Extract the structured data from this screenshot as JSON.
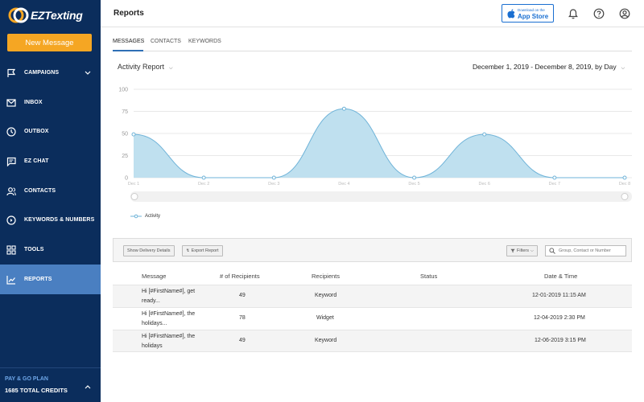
{
  "brand": {
    "logo_text": "EZTexting"
  },
  "sidebar": {
    "new_message": "New Message",
    "items": [
      {
        "label": "CAMPAIGNS",
        "icon": "flag-icon",
        "has_chevron": true
      },
      {
        "label": "INBOX",
        "icon": "inbox-icon"
      },
      {
        "label": "OUTBOX",
        "icon": "clock-icon"
      },
      {
        "label": "EZ CHAT",
        "icon": "chat-icon"
      },
      {
        "label": "CONTACTS",
        "icon": "contacts-icon"
      },
      {
        "label": "KEYWORDS & NUMBERS",
        "icon": "keywords-icon"
      },
      {
        "label": "TOOLS",
        "icon": "grid-icon"
      },
      {
        "label": "REPORTS",
        "icon": "chart-line-icon",
        "active": true
      }
    ],
    "plan": {
      "title": "PAY & GO PLAN",
      "credits": "1685 TOTAL CREDITS"
    }
  },
  "header": {
    "title": "Reports",
    "appstore": {
      "small": "Download on the",
      "big": "App Store"
    },
    "icons": [
      "bell-icon",
      "help-icon",
      "user-icon"
    ]
  },
  "tabs": [
    "MESSAGES",
    "CONTACTS",
    "KEYWORDS"
  ],
  "report": {
    "selector": "Activity Report",
    "date_range": "December 1, 2019 - December 8, 2019, by Day"
  },
  "chart_data": {
    "type": "area",
    "x": [
      "Dec 1",
      "Dec 2",
      "Dec 3",
      "Dec 4",
      "Dec 5",
      "Dec 6",
      "Dec 7",
      "Dec 8"
    ],
    "series": [
      {
        "name": "Activity",
        "values": [
          49,
          0,
          0,
          78,
          0,
          49,
          0,
          0
        ]
      }
    ],
    "yticks": [
      0,
      25,
      50,
      75,
      100
    ],
    "ylim": [
      0,
      100
    ],
    "grid": true,
    "legend": "bottom-left",
    "color": "#6fb3d8",
    "fill": "#bfe0ef"
  },
  "toolbar": {
    "delivery_details": "Show Delivery Details",
    "export_report": "Export Report",
    "filters": "Filters",
    "search_placeholder": "Group, Contact or Number"
  },
  "table": {
    "headers": [
      "Message",
      "# of Recipients",
      "Recipients",
      "Status",
      "Date & Time"
    ],
    "rows": [
      {
        "message_line1": "Hi [#FirstName#], get",
        "message_line2": "ready...",
        "recipients_count": "49",
        "recipients": "Keyword",
        "status": "",
        "datetime": "12-01-2019 11:15 AM"
      },
      {
        "message_line1": "Hi [#FirstName#], the",
        "message_line2": "holidays...",
        "recipients_count": "78",
        "recipients": "Widget",
        "status": "",
        "datetime": "12-04-2019 2:30 PM"
      },
      {
        "message_line1": "Hi [#FirstName#], the",
        "message_line2": "holidays",
        "recipients_count": "49",
        "recipients": "Keyword",
        "status": "",
        "datetime": "12-06-2019 3:15 PM"
      }
    ]
  }
}
